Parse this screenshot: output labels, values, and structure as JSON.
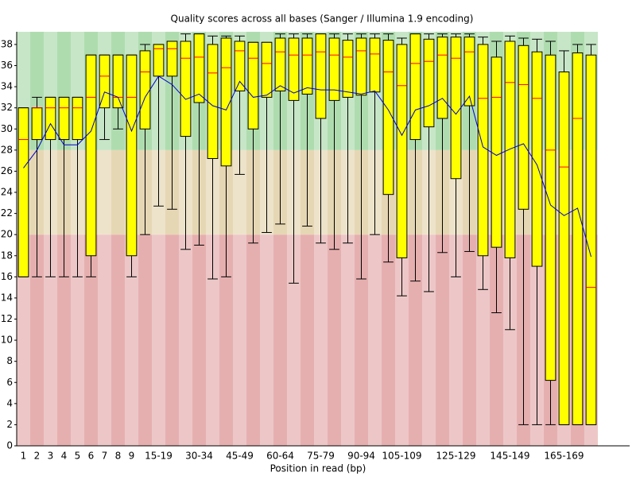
{
  "chart_data": {
    "type": "box",
    "title": "Quality scores across all bases (Sanger / Illumina 1.9 encoding)",
    "xlabel": "Position in read (bp)",
    "categories": [
      "1",
      "2",
      "3",
      "4",
      "5",
      "6",
      "7",
      "8",
      "9",
      null,
      "15-19",
      null,
      null,
      "30-34",
      null,
      null,
      "45-49",
      null,
      null,
      "60-64",
      null,
      null,
      "75-79",
      null,
      null,
      "90-94",
      null,
      null,
      "105-109",
      null,
      null,
      null,
      "125-129",
      null,
      null,
      null,
      "145-149",
      null,
      null,
      null,
      "165-169",
      null,
      null
    ],
    "whisker_low": [
      16,
      16,
      16,
      16,
      16,
      16,
      29,
      30,
      16,
      20,
      22.7,
      22.4,
      18.6,
      19,
      15.8,
      16,
      25.7,
      19.2,
      20.2,
      21,
      15.4,
      20.8,
      19.2,
      18.6,
      19.2,
      15.8,
      20,
      17.4,
      14.2,
      15.6,
      14.6,
      18.3,
      16,
      18.4,
      14.8,
      12.6,
      11,
      2,
      2,
      2,
      2,
      2,
      2
    ],
    "q1": [
      16,
      29,
      29,
      29,
      29,
      18,
      32,
      32,
      18,
      30,
      35,
      35,
      29.3,
      32.5,
      27.2,
      26.5,
      33.6,
      30,
      33,
      33.6,
      32.7,
      33.3,
      31,
      32.7,
      33,
      33.2,
      33.5,
      23.8,
      17.8,
      29,
      30.2,
      31,
      25.3,
      32.2,
      18,
      18.8,
      17.8,
      22.4,
      17,
      6.2,
      2,
      2,
      2
    ],
    "median": [
      29,
      32,
      32,
      32,
      32,
      33,
      35,
      33,
      33,
      35.4,
      37.6,
      37.6,
      36.7,
      36.8,
      35.3,
      35.8,
      37.4,
      36.7,
      36.2,
      37.3,
      37,
      37,
      37.3,
      37,
      36.8,
      37.4,
      37.1,
      35.4,
      34.1,
      36.2,
      36.4,
      37,
      36.7,
      37.3,
      32.9,
      33,
      34.4,
      34.2,
      32.9,
      28,
      26.4,
      31,
      15
    ],
    "q3": [
      32,
      32,
      33,
      33,
      33,
      37,
      37,
      37,
      37,
      37.4,
      38,
      38.3,
      38.3,
      39,
      38,
      38.6,
      38.3,
      38.2,
      38.2,
      38.6,
      38.6,
      38.6,
      39,
      38.6,
      38.4,
      38.6,
      38.6,
      38.4,
      38,
      39,
      38.5,
      38.7,
      38.7,
      38.7,
      38,
      36.8,
      38.3,
      37.9,
      37.3,
      37,
      35.4,
      37.2,
      37
    ],
    "whisker_high": [
      32,
      33,
      33,
      33,
      33,
      37,
      37,
      37,
      37,
      38,
      38,
      38.3,
      39,
      39,
      38.8,
      38.8,
      38.8,
      38.2,
      38.2,
      39,
      39,
      39,
      39,
      39,
      39,
      39,
      39,
      39,
      38.6,
      39,
      39,
      39,
      39,
      39,
      38.7,
      38.3,
      38.8,
      38.6,
      38.5,
      38.3,
      37.4,
      38,
      38
    ],
    "mean": [
      26.3,
      28,
      30.5,
      28.5,
      28.5,
      29.8,
      33.5,
      33,
      29.8,
      33,
      35,
      34.2,
      32.8,
      33.3,
      32.2,
      31.8,
      34.5,
      33,
      33.2,
      34.1,
      33.4,
      33.9,
      33.7,
      33.7,
      33.5,
      33.3,
      33.6,
      31.8,
      29.4,
      31.8,
      32.2,
      32.9,
      31.4,
      33.1,
      28.3,
      27.5,
      28.1,
      28.6,
      26.6,
      22.8,
      21.8,
      22.5,
      17.9
    ],
    "box_color": "#ffff00",
    "median_color": "#ff0000",
    "mean_color": "#0000cc",
    "zones": [
      {
        "from": 0,
        "to": 20,
        "color": "#e6afaf"
      },
      {
        "from": 20,
        "to": 28,
        "color": "#e6d7b4"
      },
      {
        "from": 28,
        "to": 39.2,
        "color": "#afdcaf"
      }
    ],
    "ylim": [
      0,
      39.2
    ],
    "yticks": [
      0,
      2,
      4,
      6,
      8,
      10,
      12,
      14,
      16,
      18,
      20,
      22,
      24,
      26,
      28,
      30,
      32,
      34,
      36,
      38
    ]
  }
}
